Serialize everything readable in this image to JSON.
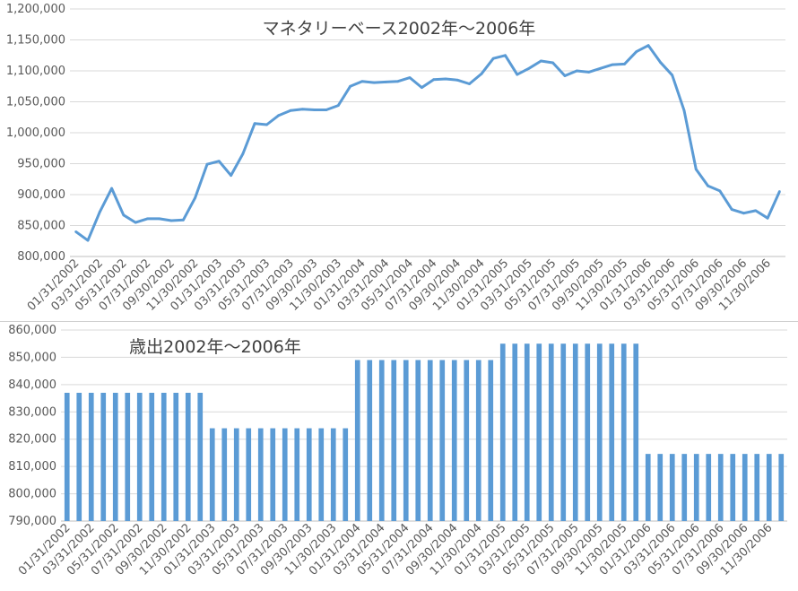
{
  "chart_data": [
    {
      "type": "line",
      "title": "マネタリーベース2002年～2006年",
      "ylim": [
        800000,
        1200000
      ],
      "ytick_step": 50000,
      "color": "#5b9bd5",
      "x_tick_labels": [
        "01/31/2002",
        "03/31/2002",
        "05/31/2002",
        "07/31/2002",
        "09/30/2002",
        "11/30/2002",
        "01/31/2003",
        "03/31/2003",
        "05/31/2003",
        "07/31/2003",
        "09/30/2003",
        "11/30/2003",
        "01/31/2004",
        "03/31/2004",
        "05/31/2004",
        "07/31/2004",
        "09/30/2004",
        "11/30/2004",
        "01/31/2005",
        "03/31/2005",
        "05/31/2005",
        "07/31/2005",
        "09/30/2005",
        "11/30/2005",
        "01/31/2006",
        "03/31/2006",
        "05/31/2006",
        "07/31/2006",
        "09/30/2006",
        "11/30/2006"
      ],
      "values": [
        840000,
        826000,
        872000,
        910000,
        867000,
        855000,
        861000,
        861000,
        858000,
        859000,
        895000,
        949000,
        954000,
        931000,
        966000,
        1015000,
        1013000,
        1028000,
        1036000,
        1038000,
        1037000,
        1037000,
        1044000,
        1075000,
        1083000,
        1081000,
        1082000,
        1083000,
        1089000,
        1073000,
        1086000,
        1087000,
        1085000,
        1079000,
        1095000,
        1120000,
        1125000,
        1094000,
        1104000,
        1116000,
        1113000,
        1092000,
        1100000,
        1098000,
        1104000,
        1110000,
        1111000,
        1131000,
        1141000,
        1114000,
        1093000,
        1036000,
        941000,
        914000,
        906000,
        876000,
        870000,
        874000,
        862000,
        905000
      ],
      "legend": "none"
    },
    {
      "type": "bar",
      "title": "歳出2002年～2006年",
      "ylim": [
        790000,
        860000
      ],
      "ytick_step": 10000,
      "color": "#5b9bd5",
      "x_tick_labels": [
        "01/31/2002",
        "03/31/2002",
        "05/31/2002",
        "07/31/2002",
        "09/30/2002",
        "11/30/2002",
        "01/31/2003",
        "03/31/2003",
        "05/31/2003",
        "07/31/2003",
        "09/30/2003",
        "11/30/2003",
        "01/31/2004",
        "03/31/2004",
        "05/31/2004",
        "07/31/2004",
        "09/30/2004",
        "11/30/2004",
        "01/31/2005",
        "03/31/2005",
        "05/31/2005",
        "07/31/2005",
        "09/30/2005",
        "11/30/2005",
        "01/31/2006",
        "03/31/2006",
        "05/31/2006",
        "07/31/2006",
        "09/30/2006",
        "11/30/2006"
      ],
      "values": [
        837000,
        837000,
        837000,
        837000,
        837000,
        837000,
        837000,
        837000,
        837000,
        837000,
        837000,
        837000,
        824000,
        824000,
        824000,
        824000,
        824000,
        824000,
        824000,
        824000,
        824000,
        824000,
        824000,
        824000,
        849000,
        849000,
        849000,
        849000,
        849000,
        849000,
        849000,
        849000,
        849000,
        849000,
        849000,
        849000,
        855000,
        855000,
        855000,
        855000,
        855000,
        855000,
        855000,
        855000,
        855000,
        855000,
        855000,
        855000,
        814600,
        814600,
        814600,
        814600,
        814600,
        814600,
        814600,
        814600,
        814600,
        814600,
        814600,
        814600
      ],
      "legend": "none"
    }
  ]
}
